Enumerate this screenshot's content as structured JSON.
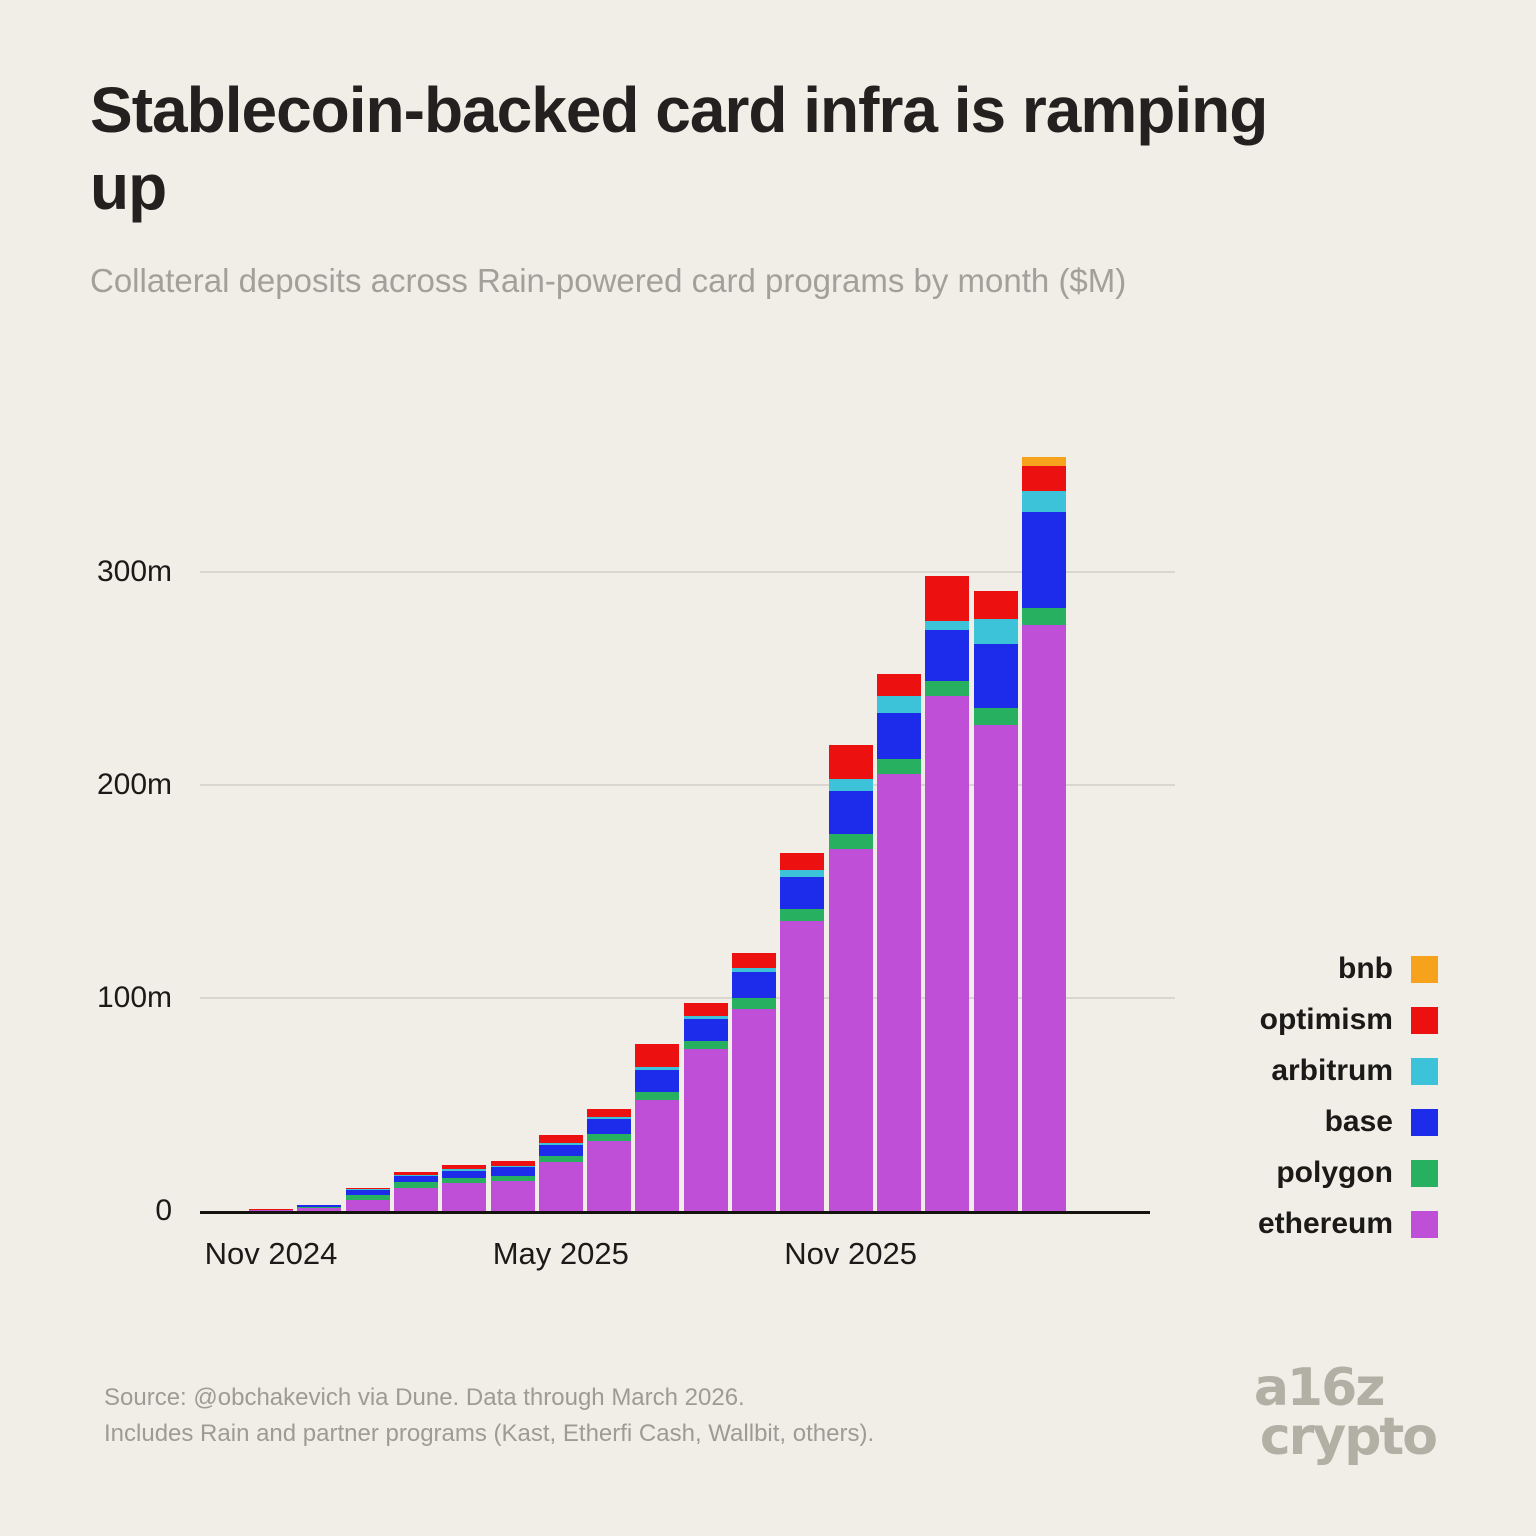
{
  "header": {
    "title": "Stablecoin-backed card infra is ramping up",
    "subtitle": "Collateral deposits across Rain-powered card programs by month ($M)"
  },
  "chart_data": {
    "type": "bar",
    "stacked": true,
    "title": "Stablecoin-backed card infra is ramping up",
    "subtitle": "Collateral deposits across Rain-powered card programs by month ($M)",
    "unit": "$M",
    "ylim": [
      0,
      360
    ],
    "grid": "horizontal",
    "legend_position": "right",
    "categories": [
      "Nov 2024",
      "Dec 2024",
      "Jan 2025",
      "Feb 2025",
      "Mar 2025",
      "Apr 2025",
      "May 2025",
      "Jun 2025",
      "Jul 2025",
      "Aug 2025",
      "Sep 2025",
      "Oct 2025",
      "Nov 2025",
      "Dec 2025",
      "Jan 2026",
      "Feb 2026",
      "Mar 2026"
    ],
    "x_tick_labels": [
      {
        "label": "Nov 2024",
        "index": 0
      },
      {
        "label": "May 2025",
        "index": 6
      },
      {
        "label": "Nov 2025",
        "index": 12
      }
    ],
    "y_ticks": [
      {
        "label": "0",
        "value": 0
      },
      {
        "label": "100m",
        "value": 100
      },
      {
        "label": "200m",
        "value": 200
      },
      {
        "label": "300m",
        "value": 300
      }
    ],
    "stack_order_bottom_to_top": [
      "ethereum",
      "polygon",
      "base",
      "arbitrum",
      "optimism",
      "bnb"
    ],
    "series": [
      {
        "name": "ethereum",
        "color": "#bf4fd6",
        "values": [
          0.5,
          1.5,
          5,
          11,
          13,
          14,
          23,
          33,
          52,
          76,
          95,
          136,
          170,
          205,
          242,
          228,
          275
        ]
      },
      {
        "name": "polygon",
        "color": "#27b05f",
        "values": [
          0.1,
          0.5,
          2.5,
          2.5,
          2.5,
          2.5,
          3,
          3,
          4,
          4,
          5,
          6,
          7,
          7,
          7,
          8,
          8
        ]
      },
      {
        "name": "base",
        "color": "#1d2beb",
        "values": [
          0.1,
          0.6,
          2.5,
          3,
          3.5,
          4,
          5,
          7,
          10,
          10,
          12,
          15,
          20,
          22,
          24,
          30,
          45
        ]
      },
      {
        "name": "arbitrum",
        "color": "#3cc2d9",
        "values": [
          0,
          0.1,
          0.2,
          0.3,
          0.5,
          0.5,
          1,
          1,
          1.5,
          1.5,
          2,
          3,
          6,
          8,
          4,
          12,
          10
        ]
      },
      {
        "name": "optimism",
        "color": "#ec1010",
        "values": [
          0.4,
          0.3,
          0.5,
          1.5,
          2,
          2.5,
          3.5,
          4,
          11,
          6,
          7,
          8,
          16,
          10,
          21,
          13,
          12
        ]
      },
      {
        "name": "bnb",
        "color": "#f6a21d",
        "values": [
          0,
          0,
          0,
          0,
          0,
          0,
          0,
          0,
          0,
          0,
          0,
          0,
          0,
          0,
          0,
          0,
          4
        ]
      }
    ],
    "legend": [
      "bnb",
      "optimism",
      "arbitrum",
      "base",
      "polygon",
      "ethereum"
    ]
  },
  "footer": {
    "source_line1": "Source: @obchakevich via Dune. Data through March 2026.",
    "source_line2": "Includes Rain and partner programs (Kast, Etherfi Cash, Wallbit, others).",
    "logo_line1": "a16z",
    "logo_line2": "crypto"
  }
}
